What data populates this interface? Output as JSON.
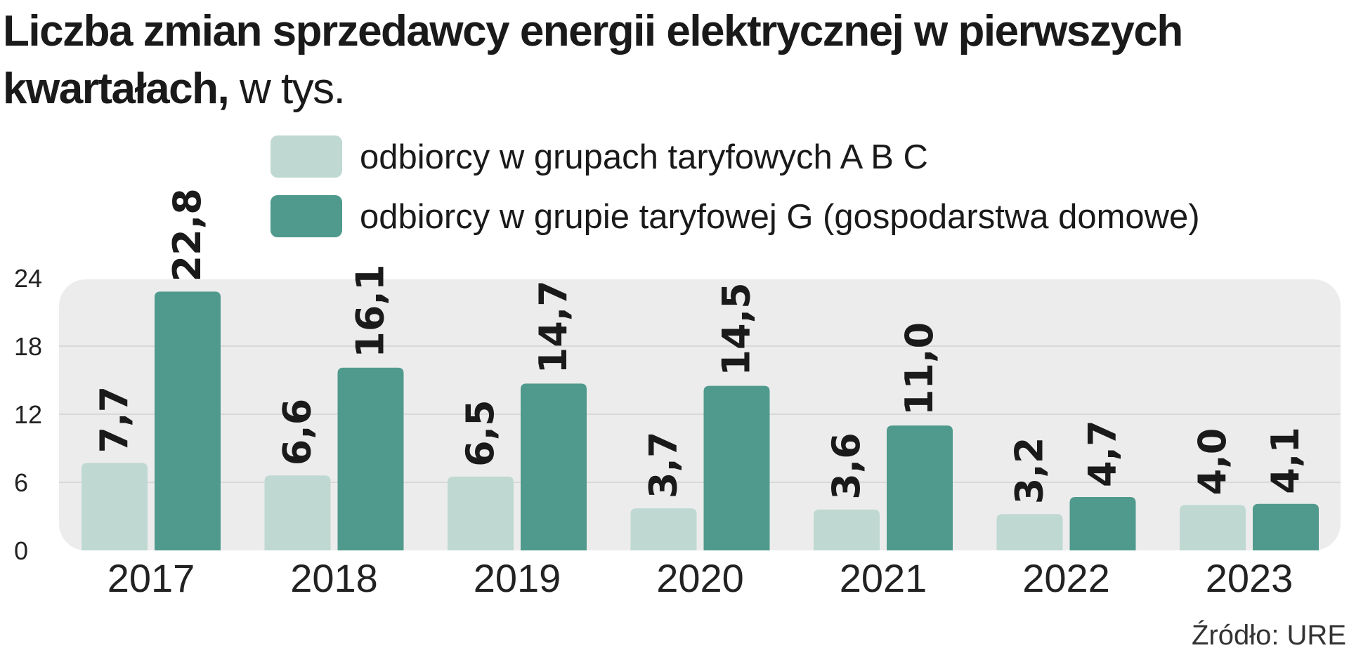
{
  "header": {
    "title_bold": "Liczba zmian sprzedawcy energii elektrycznej w pierwszych kwartałach,",
    "title_light": " w tys."
  },
  "source": "Źródło: URE",
  "colors": {
    "series_abc": "#bfd9d2",
    "series_g": "#4f9a8d",
    "plot_bg": "#ececec"
  },
  "chart_data": {
    "type": "bar",
    "categories": [
      "2017",
      "2018",
      "2019",
      "2020",
      "2021",
      "2022",
      "2023"
    ],
    "series": [
      {
        "name": "odbiorcy w grupach taryfowych A B C",
        "values": [
          7.7,
          6.6,
          6.5,
          3.7,
          3.6,
          3.2,
          4.0
        ],
        "labels": [
          "7,7",
          "6,6",
          "6,5",
          "3,7",
          "3,6",
          "3,2",
          "4,0"
        ]
      },
      {
        "name": "odbiorcy w grupie taryfowej G (gospodarstwa domowe)",
        "values": [
          22.8,
          16.1,
          14.7,
          14.5,
          11.0,
          4.7,
          4.1
        ],
        "labels": [
          "22,8",
          "16,1",
          "14,7",
          "14,5",
          "11,0",
          "4,7",
          "4,1"
        ]
      }
    ],
    "yticks": [
      "0",
      "6",
      "12",
      "18",
      "24"
    ],
    "ylim": [
      0,
      24
    ],
    "grid": true,
    "legend": "top"
  }
}
